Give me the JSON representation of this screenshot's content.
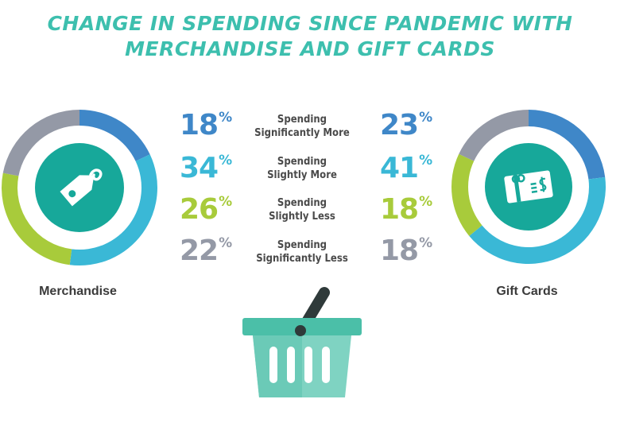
{
  "title": {
    "line1": "CHANGE IN SPENDING SINCE PANDEMIC WITH",
    "line2": "MERCHANDISE AND GIFT CARDS"
  },
  "colors": {
    "title": "#3dbfae",
    "significantly_more": "#3f87c8",
    "slightly_more": "#3ab8d6",
    "slightly_less": "#a8cb3b",
    "significantly_less": "#9499a6",
    "icon_circle": "#17a89a",
    "basket": "#4bbfa8"
  },
  "chart_data": [
    {
      "type": "pie",
      "title": "Merchandise",
      "categories": [
        "Spending Significantly More",
        "Spending Slightly More",
        "Spending Slightly Less",
        "Spending Significantly Less"
      ],
      "values": [
        18,
        34,
        26,
        22
      ],
      "unit": "%"
    },
    {
      "type": "pie",
      "title": "Gift Cards",
      "categories": [
        "Spending Significantly More",
        "Spending Slightly More",
        "Spending Slightly Less",
        "Spending Significantly Less"
      ],
      "values": [
        23,
        41,
        18,
        18
      ],
      "unit": "%"
    }
  ],
  "rows": [
    {
      "line1": "Spending",
      "line2": "Significantly More",
      "merch": "18",
      "gift": "23"
    },
    {
      "line1": "Spending",
      "line2": "Slightly More",
      "merch": "34",
      "gift": "41"
    },
    {
      "line1": "Spending",
      "line2": "Slightly Less",
      "merch": "26",
      "gift": "18"
    },
    {
      "line1": "Spending",
      "line2": "Significantly Less",
      "merch": "22",
      "gift": "18"
    }
  ],
  "percent_sign": "%",
  "labels": {
    "merchandise": "Merchandise",
    "gift_cards": "Gift Cards"
  },
  "icons": {
    "merchandise": "price-tag-icon",
    "gift_cards": "gift-card-icon",
    "footer": "shopping-basket-icon"
  }
}
